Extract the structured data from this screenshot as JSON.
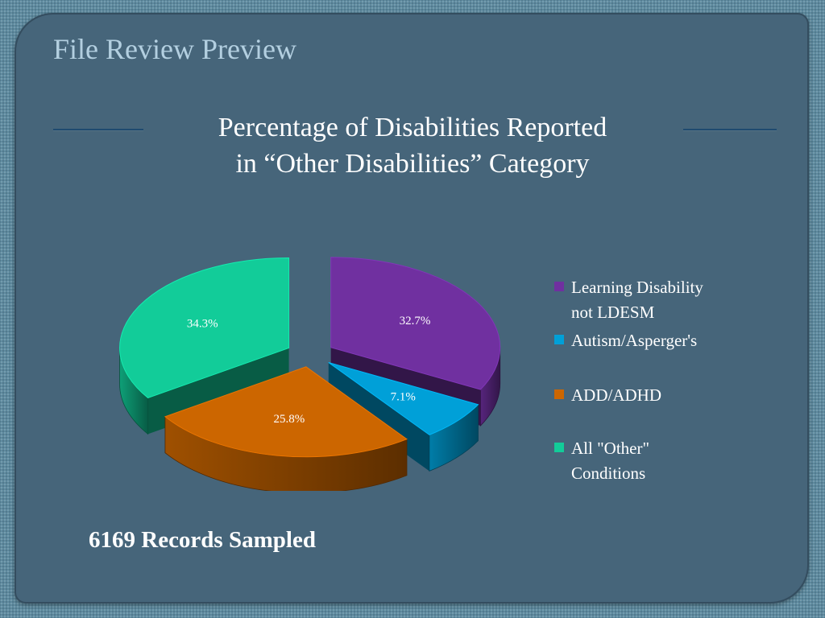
{
  "slide": {
    "title": "File Review Preview",
    "footer_note": "6169 Records Sampled"
  },
  "chart_data": {
    "type": "pie",
    "title_lines": [
      "Percentage of Disabilities Reported",
      "in “Other Disabilities” Category"
    ],
    "legend_placement": "right",
    "slices": [
      {
        "name": "Learning Disability\nnot LDESM",
        "value": 32.7,
        "label": "32.7%",
        "color": "#7030a0"
      },
      {
        "name": "Autism/Asperger's",
        "value": 7.1,
        "label": "7.1%",
        "color": "#00a0d8"
      },
      {
        "name": "ADD/ADHD",
        "value": 25.8,
        "label": "25.8%",
        "color": "#cc6600"
      },
      {
        "name": "All \"Other\"\nConditions",
        "value": 34.3,
        "label": "34.3%",
        "color": "#12cc99"
      }
    ]
  }
}
